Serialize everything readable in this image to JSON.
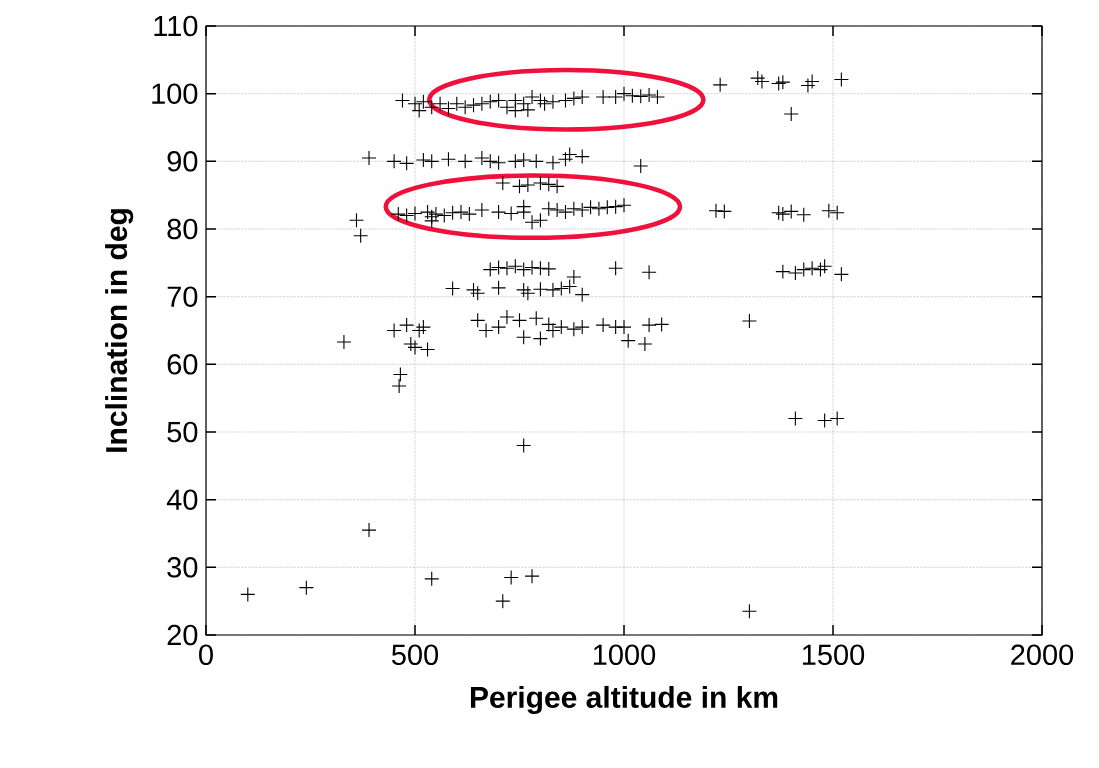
{
  "chart_data": {
    "type": "scatter",
    "xlabel": "Perigee altitude in km",
    "ylabel": "Inclination in deg",
    "xlim": [
      0,
      2000
    ],
    "ylim": [
      20,
      110
    ],
    "xticks": [
      0,
      500,
      1000,
      1500,
      2000
    ],
    "yticks": [
      20,
      30,
      40,
      50,
      60,
      70,
      80,
      90,
      100,
      110
    ],
    "grid": true,
    "marker": "cross",
    "series": [
      {
        "color": "#000000",
        "x": [
          470,
          500,
          510,
          540,
          560,
          580,
          600,
          620,
          640,
          660,
          680,
          700,
          720,
          740,
          760,
          780,
          800,
          810,
          830,
          860,
          880,
          900,
          950,
          980,
          1000,
          1020,
          1040,
          1060,
          1080,
          740,
          770,
          520,
          1230,
          1320,
          1330,
          1370,
          1380,
          1440,
          1450,
          1520,
          1400,
          460,
          480,
          500,
          530,
          540,
          550,
          570,
          590,
          610,
          630,
          660,
          700,
          730,
          760,
          780,
          800,
          820,
          840,
          860,
          880,
          900,
          920,
          940,
          960,
          980,
          1000,
          540,
          760,
          1220,
          1240,
          1370,
          1380,
          1400,
          1430,
          1490,
          1510,
          360,
          370,
          710,
          750,
          770,
          800,
          820,
          840,
          390,
          450,
          480,
          520,
          540,
          580,
          620,
          660,
          680,
          700,
          740,
          760,
          790,
          830,
          860,
          870,
          900,
          1040,
          680,
          700,
          720,
          740,
          760,
          780,
          800,
          820,
          980,
          1060,
          1380,
          1410,
          1430,
          1450,
          1470,
          1480,
          1520,
          590,
          640,
          650,
          700,
          760,
          770,
          800,
          830,
          850,
          880,
          900,
          870,
          450,
          480,
          510,
          520,
          650,
          670,
          700,
          720,
          750,
          760,
          790,
          800,
          830,
          850,
          880,
          900,
          950,
          980,
          1000,
          1010,
          1050,
          1060,
          1090,
          1300,
          820,
          330,
          490,
          500,
          530,
          465,
          462,
          1410,
          1480,
          1510,
          760,
          390,
          100,
          240,
          540,
          730,
          780,
          710,
          1300
        ],
        "values": [
          99,
          98.5,
          97.5,
          98,
          98.5,
          97.8,
          98.5,
          98,
          98.3,
          98.5,
          98.8,
          99,
          98,
          99,
          98.5,
          99.5,
          99,
          98.5,
          98.8,
          99,
          99.3,
          99.5,
          99.5,
          99.5,
          100,
          99.7,
          99.6,
          99.8,
          99.5,
          97.5,
          97.6,
          98.8,
          101.3,
          102.3,
          101.8,
          101.5,
          101.7,
          101.2,
          101.8,
          102.1,
          97,
          82.2,
          82,
          82.3,
          82.5,
          81.8,
          82.2,
          82,
          82.4,
          82.5,
          82.2,
          82.8,
          82.5,
          82.3,
          82.5,
          81,
          81.3,
          83,
          82.8,
          82.5,
          83,
          82.8,
          83.2,
          83,
          83.2,
          83.3,
          83.5,
          81.2,
          83.3,
          82.7,
          82.6,
          82.4,
          82.2,
          82.6,
          82.1,
          82.7,
          82.4,
          81.3,
          79,
          86.8,
          86.3,
          86.5,
          86.8,
          86.6,
          86.3,
          90.5,
          90,
          89.7,
          90.2,
          90,
          90.3,
          90,
          90.5,
          90,
          89.8,
          90,
          90.2,
          90,
          89.8,
          90.3,
          91,
          90.7,
          89.3,
          74,
          74.3,
          74.2,
          74.5,
          74,
          74.3,
          74.2,
          74.1,
          74.2,
          73.6,
          73.7,
          73.5,
          74,
          74.2,
          74,
          74.5,
          73.3,
          71.2,
          71,
          70.5,
          71.3,
          71,
          70.5,
          71.1,
          71,
          71.2,
          72.9,
          70.3,
          71.5,
          65,
          65.8,
          65,
          65.5,
          66.5,
          65,
          65.5,
          67,
          66.5,
          64,
          66.8,
          63.8,
          65,
          65.5,
          65.2,
          65.5,
          65.8,
          65.5,
          65.5,
          63.5,
          63,
          65.8,
          65.9,
          66.4,
          65.9,
          63.3,
          63,
          62.5,
          62.2,
          58.5,
          56.8,
          52,
          51.7,
          52,
          48,
          35.5,
          26,
          27,
          28.3,
          28.5,
          28.7,
          25,
          23.5
        ]
      }
    ]
  }
}
